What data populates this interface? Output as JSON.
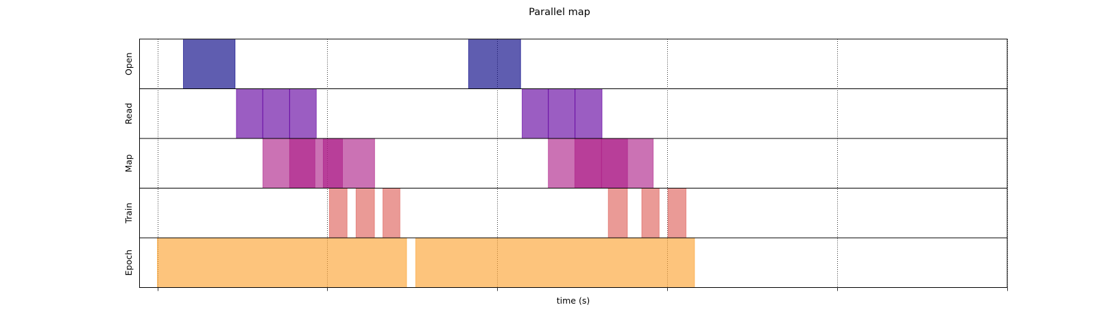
{
  "chart_data": {
    "type": "bar",
    "subtype": "broken-horizontal-timeline",
    "title": "Parallel map",
    "xlabel": "time (s)",
    "ylabel": "",
    "xlim": [
      -0.105,
      5.0
    ],
    "xticks": [
      0,
      1,
      2,
      3,
      4,
      5
    ],
    "xtick_labels_visible": false,
    "grid": "vertical dotted at x ticks",
    "legend": "none",
    "opacity": 0.635,
    "rows": [
      {
        "name": "Open",
        "color": "#030083",
        "intervals": [
          [
            0.153,
            0.457
          ],
          [
            1.831,
            2.137
          ]
        ]
      },
      {
        "name": "Read",
        "color": "#62009f",
        "intervals": [
          [
            0.465,
            0.62
          ],
          [
            0.62,
            0.778
          ],
          [
            0.778,
            0.935
          ],
          [
            2.146,
            2.3
          ],
          [
            2.3,
            2.457
          ],
          [
            2.457,
            2.616
          ]
        ]
      },
      {
        "name": "Map",
        "color": "#ad2189",
        "intervals": [
          [
            0.621,
            0.927
          ],
          [
            0.778,
            1.089
          ],
          [
            0.976,
            1.278
          ],
          [
            2.3,
            2.613
          ],
          [
            2.456,
            2.766
          ],
          [
            2.613,
            2.917
          ]
        ]
      },
      {
        "name": "Train",
        "color": "#de605a",
        "intervals": [
          [
            1.012,
            1.116
          ],
          [
            1.169,
            1.277
          ],
          [
            1.327,
            1.427
          ],
          [
            2.653,
            2.765
          ],
          [
            2.85,
            2.952
          ],
          [
            3.004,
            3.11
          ]
        ]
      },
      {
        "name": "Epoch",
        "color": "#fca231",
        "intervals": [
          [
            0.0,
            1.466
          ],
          [
            1.52,
            3.16
          ]
        ]
      }
    ]
  }
}
